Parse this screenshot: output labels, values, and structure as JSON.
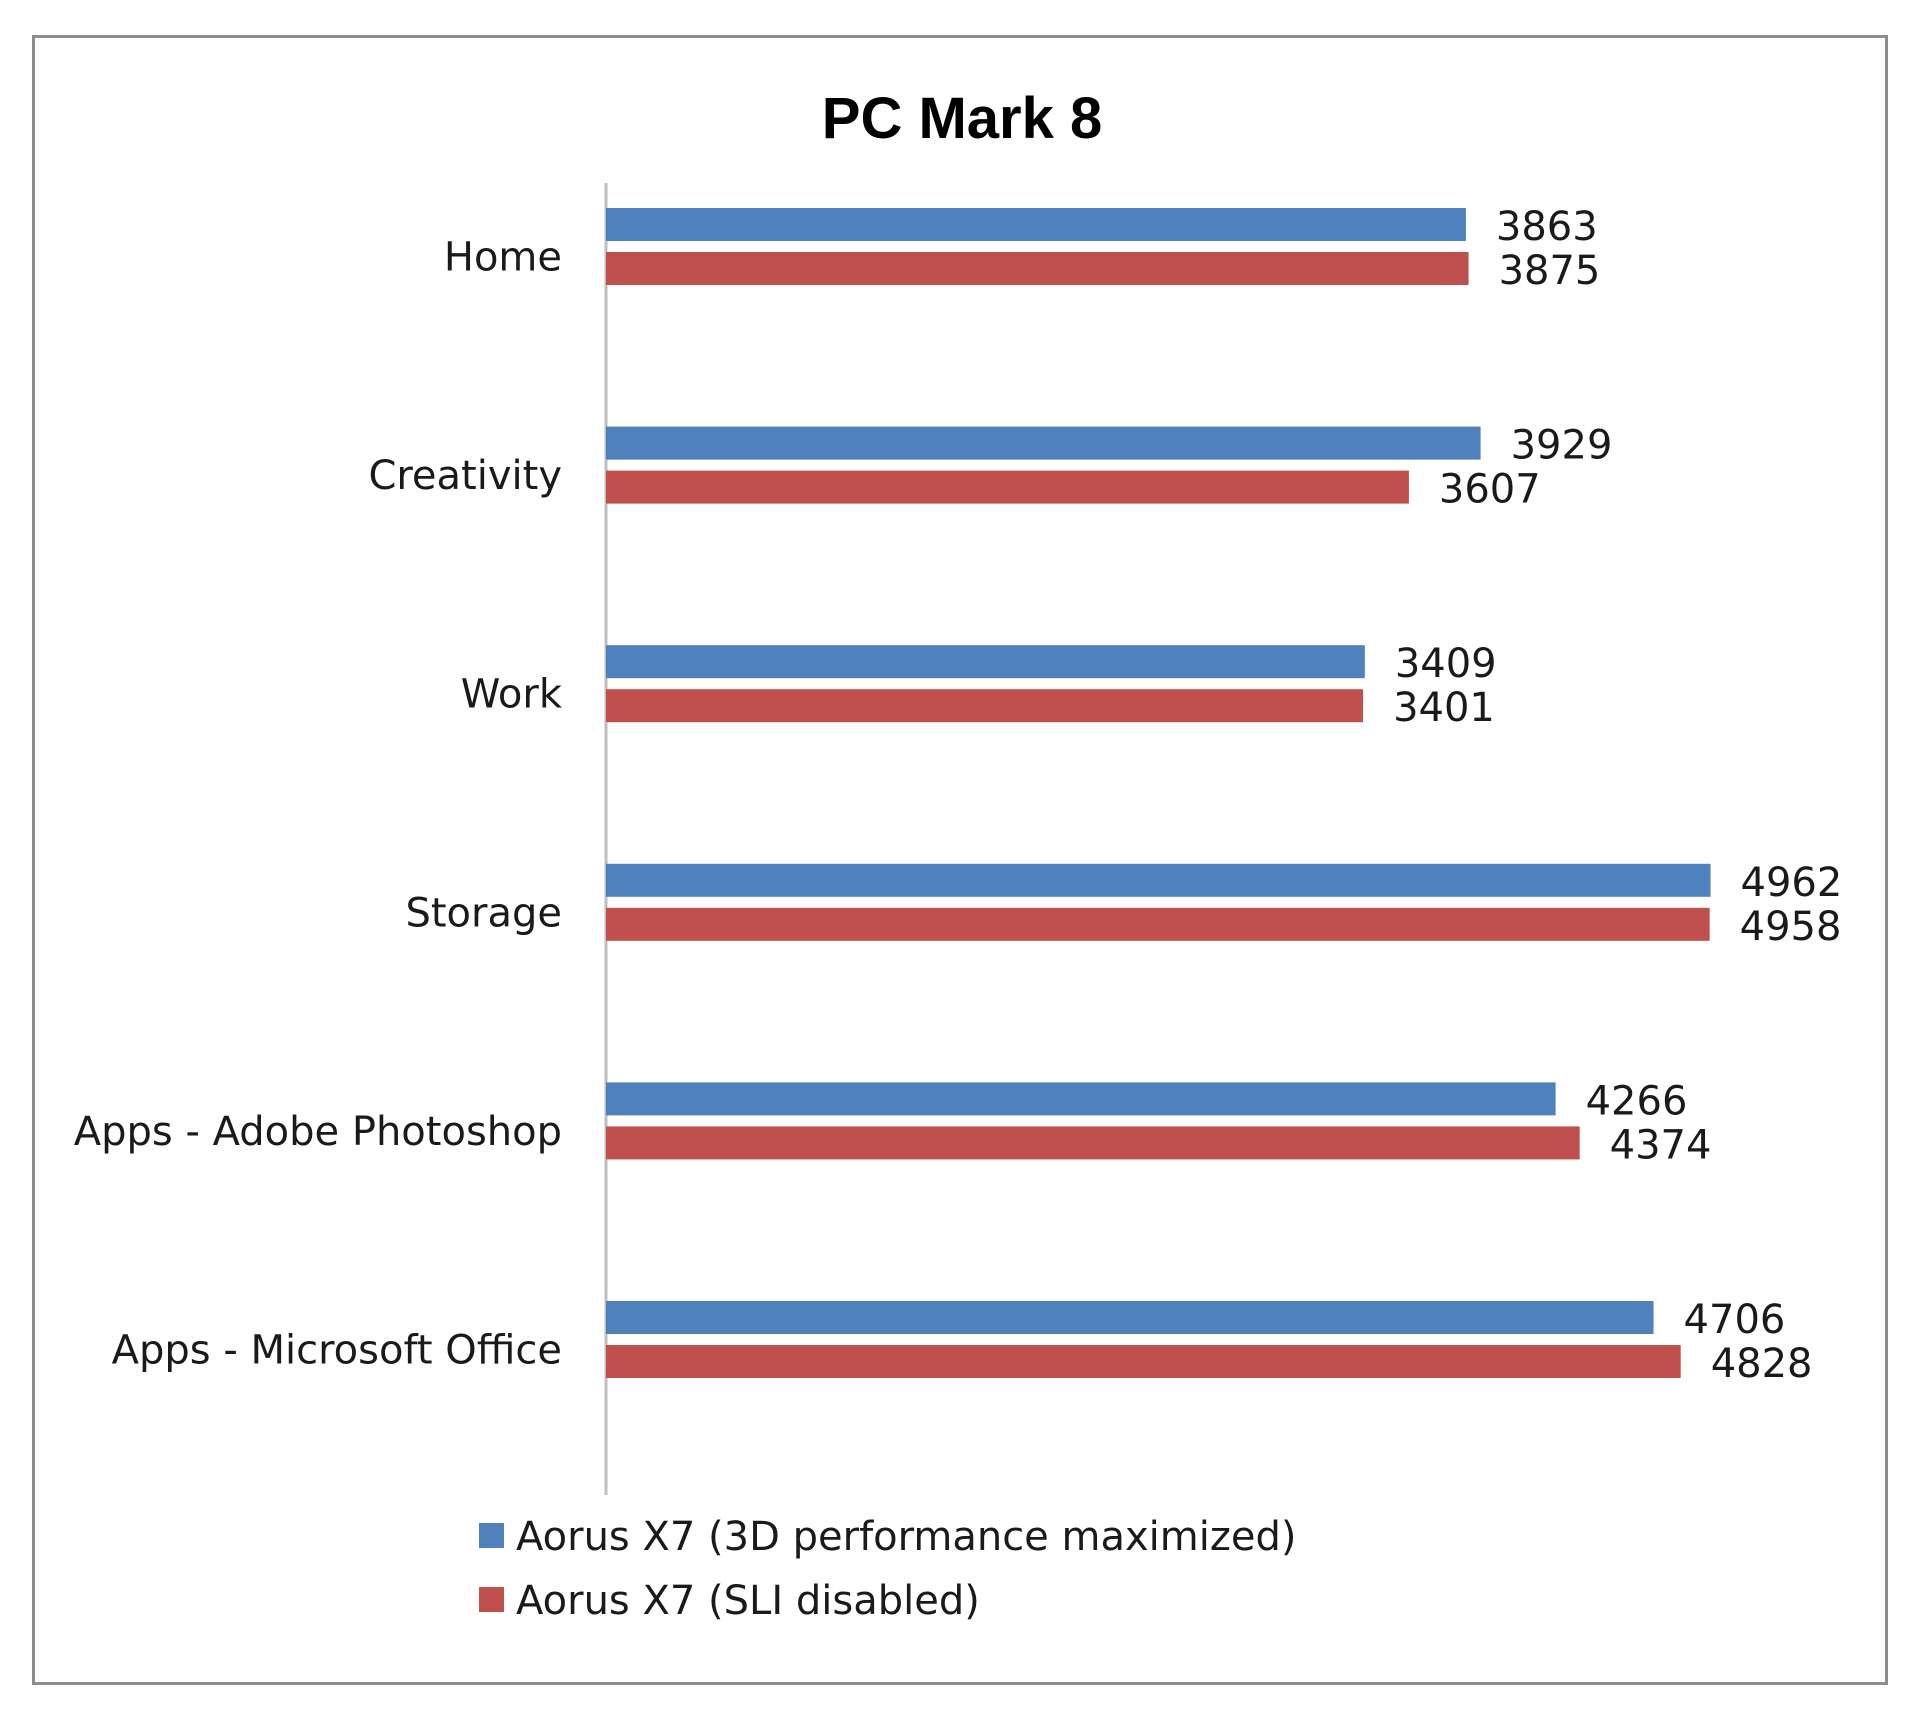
{
  "chart_data": {
    "type": "bar",
    "orientation": "horizontal",
    "title": "PC Mark 8",
    "xlabel": "",
    "ylabel": "",
    "xlim": [
      0,
      5000
    ],
    "grid": false,
    "legend_position": "bottom",
    "categories": [
      "Home",
      "Creativity",
      "Work",
      "Storage",
      "Apps - Adobe Photoshop",
      "Apps - Microsoft Office"
    ],
    "series": [
      {
        "name": "Aorus X7 (3D performance maximized)",
        "color": "#4f81bd",
        "values": [
          3863,
          3929,
          3409,
          4962,
          4266,
          4706
        ]
      },
      {
        "name": "Aorus X7 (SLI disabled)",
        "color": "#c0504d",
        "values": [
          3875,
          3607,
          3401,
          4958,
          4374,
          4828
        ]
      }
    ]
  }
}
